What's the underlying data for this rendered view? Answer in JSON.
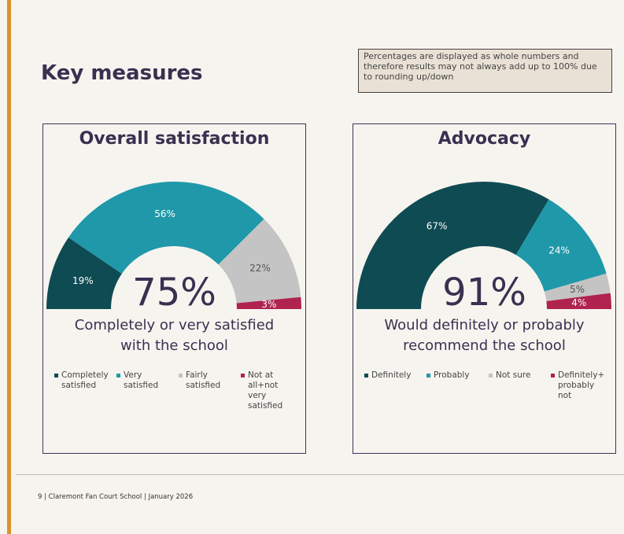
{
  "title": "Key measures",
  "note": "Percentages are displayed as whole numbers and therefore results may not always add up to 100% due to rounding up/down",
  "footer": "9 | Claremont Fan Court School | January 2026",
  "chart_data": [
    {
      "type": "donut",
      "title": "Overall satisfaction",
      "center_text": "75%",
      "subtitle": "Completely or very satisfied with the school",
      "categories": [
        "Completely satisfied",
        "Very satisfied",
        "Fairly satisfied",
        "Not at all+not very satisfied"
      ],
      "values": [
        19,
        56,
        22,
        3
      ],
      "value_labels": [
        "19%",
        "56%",
        "22%",
        "3%"
      ],
      "colors": [
        "#0f4b52",
        "#1f98a9",
        "#c4c4c4",
        "#b0234f"
      ]
    },
    {
      "type": "donut",
      "title": "Advocacy",
      "center_text": "91%",
      "subtitle": "Would definitely or probably recommend the school",
      "categories": [
        "Definitely",
        "Probably",
        "Not sure",
        "Definitely+ probably not"
      ],
      "values": [
        67,
        24,
        5,
        4
      ],
      "value_labels": [
        "67%",
        "24%",
        "5%",
        "4%"
      ],
      "colors": [
        "#0f4b52",
        "#1f98a9",
        "#c4c4c4",
        "#b0234f"
      ]
    }
  ]
}
